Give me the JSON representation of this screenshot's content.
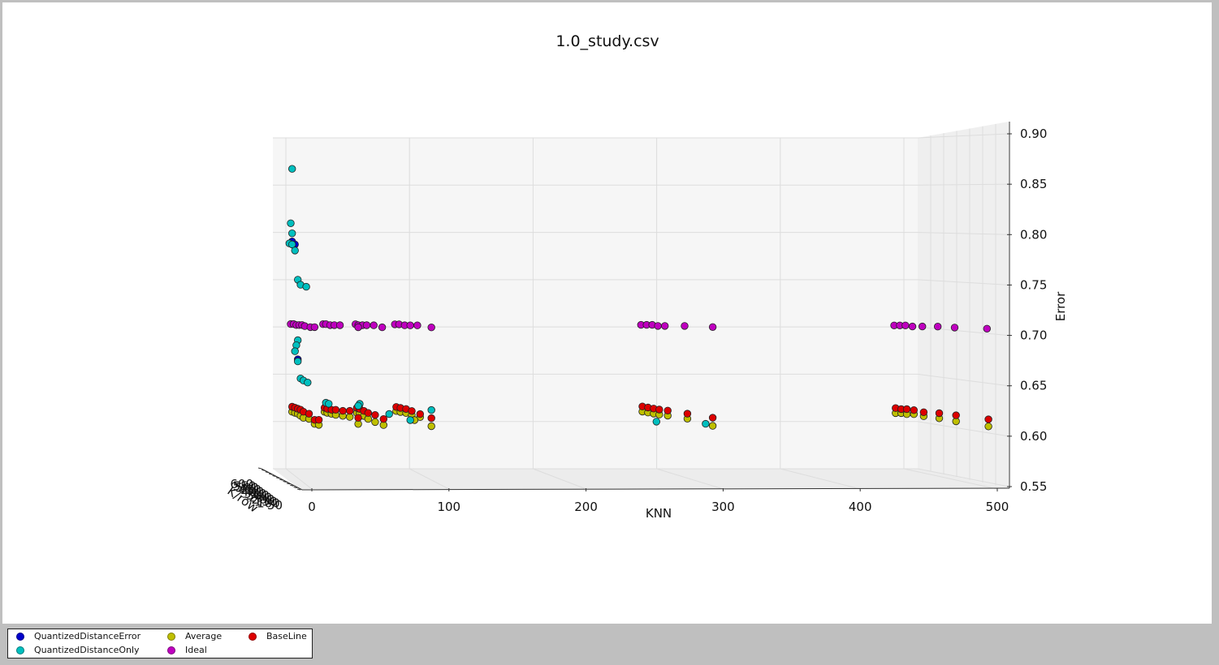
{
  "chart_data": {
    "type": "scatter",
    "title": "1.0_study.csv",
    "xlabel": "KNN",
    "ylabel": "K/row",
    "zlabel": "Error",
    "x_ticks": [
      "0",
      "100",
      "200",
      "300",
      "400",
      "500"
    ],
    "y_ticks": [
      "50",
      "100",
      "150",
      "200",
      "250",
      "300",
      "350",
      "400",
      "450",
      "500",
      "550",
      "600"
    ],
    "z_ticks": [
      "0.55",
      "0.60",
      "0.65",
      "0.70",
      "0.75",
      "0.80",
      "0.85",
      "0.90"
    ],
    "xlim": [
      0,
      500
    ],
    "zlim": [
      0.55,
      0.9
    ],
    "grid": true,
    "legend_position": "bottom-left, outside plot",
    "series": [
      {
        "name": "QuantizedDistanceError",
        "color": "#0000cc",
        "points": [
          {
            "x": 1,
            "z": 0.782
          },
          {
            "x": 3,
            "z": 0.779
          },
          {
            "x": 5,
            "z": 0.665
          }
        ]
      },
      {
        "name": "QuantizedDistanceOnly",
        "color": "#00bfbf",
        "points": [
          {
            "x": 1,
            "z": 0.854
          },
          {
            "x": 0,
            "z": 0.8
          },
          {
            "x": 1,
            "z": 0.79
          },
          {
            "x": -1,
            "z": 0.78
          },
          {
            "x": 1,
            "z": 0.779
          },
          {
            "x": 3,
            "z": 0.773
          },
          {
            "x": 5,
            "z": 0.744
          },
          {
            "x": 7,
            "z": 0.739
          },
          {
            "x": 11,
            "z": 0.737
          },
          {
            "x": 5,
            "z": 0.684
          },
          {
            "x": 4,
            "z": 0.679
          },
          {
            "x": 3,
            "z": 0.673
          },
          {
            "x": 5,
            "z": 0.663
          },
          {
            "x": 7,
            "z": 0.646
          },
          {
            "x": 9,
            "z": 0.644
          },
          {
            "x": 12,
            "z": 0.642
          },
          {
            "x": 25,
            "z": 0.622
          },
          {
            "x": 27,
            "z": 0.621
          },
          {
            "x": 49,
            "z": 0.621
          },
          {
            "x": 48,
            "z": 0.619
          },
          {
            "x": 70,
            "z": 0.611
          },
          {
            "x": 100,
            "z": 0.615
          },
          {
            "x": 85,
            "z": 0.605
          },
          {
            "x": 260,
            "z": 0.604
          },
          {
            "x": 295,
            "z": 0.602
          }
        ]
      },
      {
        "name": "Average",
        "color": "#bfbf00",
        "points": [
          {
            "x": 1,
            "z": 0.613
          },
          {
            "x": 3,
            "z": 0.612
          },
          {
            "x": 5,
            "z": 0.611
          },
          {
            "x": 7,
            "z": 0.609
          },
          {
            "x": 9,
            "z": 0.607
          },
          {
            "x": 13,
            "z": 0.606
          },
          {
            "x": 17,
            "z": 0.601
          },
          {
            "x": 20,
            "z": 0.6
          },
          {
            "x": 24,
            "z": 0.613
          },
          {
            "x": 26,
            "z": 0.612
          },
          {
            "x": 29,
            "z": 0.611
          },
          {
            "x": 32,
            "z": 0.61
          },
          {
            "x": 37,
            "z": 0.609
          },
          {
            "x": 42,
            "z": 0.608
          },
          {
            "x": 47,
            "z": 0.612
          },
          {
            "x": 49,
            "z": 0.611
          },
          {
            "x": 52,
            "z": 0.609
          },
          {
            "x": 55,
            "z": 0.606
          },
          {
            "x": 60,
            "z": 0.603
          },
          {
            "x": 48,
            "z": 0.601
          },
          {
            "x": 66,
            "z": 0.6
          },
          {
            "x": 75,
            "z": 0.614
          },
          {
            "x": 78,
            "z": 0.613
          },
          {
            "x": 82,
            "z": 0.612
          },
          {
            "x": 86,
            "z": 0.61
          },
          {
            "x": 92,
            "z": 0.608
          },
          {
            "x": 88,
            "z": 0.605
          },
          {
            "x": 100,
            "z": 0.599
          },
          {
            "x": 250,
            "z": 0.614
          },
          {
            "x": 254,
            "z": 0.613
          },
          {
            "x": 258,
            "z": 0.612
          },
          {
            "x": 262,
            "z": 0.611
          },
          {
            "x": 268,
            "z": 0.61
          },
          {
            "x": 282,
            "z": 0.607
          },
          {
            "x": 300,
            "z": 0.6
          },
          {
            "x": 430,
            "z": 0.613
          },
          {
            "x": 434,
            "z": 0.613
          },
          {
            "x": 438,
            "z": 0.612
          },
          {
            "x": 443,
            "z": 0.612
          },
          {
            "x": 450,
            "z": 0.61
          },
          {
            "x": 461,
            "z": 0.608
          },
          {
            "x": 473,
            "z": 0.605
          },
          {
            "x": 496,
            "z": 0.6
          }
        ]
      },
      {
        "name": "BaseLine",
        "color": "#dd0000",
        "points": [
          {
            "x": 1,
            "z": 0.618
          },
          {
            "x": 3,
            "z": 0.617
          },
          {
            "x": 5,
            "z": 0.616
          },
          {
            "x": 7,
            "z": 0.615
          },
          {
            "x": 9,
            "z": 0.613
          },
          {
            "x": 13,
            "z": 0.611
          },
          {
            "x": 17,
            "z": 0.605
          },
          {
            "x": 20,
            "z": 0.605
          },
          {
            "x": 24,
            "z": 0.617
          },
          {
            "x": 26,
            "z": 0.616
          },
          {
            "x": 29,
            "z": 0.615
          },
          {
            "x": 32,
            "z": 0.615
          },
          {
            "x": 37,
            "z": 0.614
          },
          {
            "x": 42,
            "z": 0.614
          },
          {
            "x": 47,
            "z": 0.617
          },
          {
            "x": 49,
            "z": 0.616
          },
          {
            "x": 52,
            "z": 0.614
          },
          {
            "x": 55,
            "z": 0.612
          },
          {
            "x": 60,
            "z": 0.61
          },
          {
            "x": 48,
            "z": 0.607
          },
          {
            "x": 66,
            "z": 0.606
          },
          {
            "x": 75,
            "z": 0.618
          },
          {
            "x": 78,
            "z": 0.617
          },
          {
            "x": 82,
            "z": 0.616
          },
          {
            "x": 86,
            "z": 0.614
          },
          {
            "x": 92,
            "z": 0.611
          },
          {
            "x": 100,
            "z": 0.607
          },
          {
            "x": 250,
            "z": 0.619
          },
          {
            "x": 254,
            "z": 0.618
          },
          {
            "x": 258,
            "z": 0.617
          },
          {
            "x": 262,
            "z": 0.616
          },
          {
            "x": 268,
            "z": 0.615
          },
          {
            "x": 282,
            "z": 0.612
          },
          {
            "x": 300,
            "z": 0.608
          },
          {
            "x": 430,
            "z": 0.618
          },
          {
            "x": 434,
            "z": 0.617
          },
          {
            "x": 438,
            "z": 0.617
          },
          {
            "x": 443,
            "z": 0.616
          },
          {
            "x": 450,
            "z": 0.614
          },
          {
            "x": 461,
            "z": 0.613
          },
          {
            "x": 473,
            "z": 0.611
          },
          {
            "x": 496,
            "z": 0.607
          }
        ]
      },
      {
        "name": "Ideal",
        "color": "#bf00bf",
        "points": [
          {
            "x": 0,
            "z": 0.7
          },
          {
            "x": 2,
            "z": 0.7
          },
          {
            "x": 4,
            "z": 0.699
          },
          {
            "x": 6,
            "z": 0.699
          },
          {
            "x": 8,
            "z": 0.699
          },
          {
            "x": 10,
            "z": 0.698
          },
          {
            "x": 14,
            "z": 0.697
          },
          {
            "x": 17,
            "z": 0.697
          },
          {
            "x": 23,
            "z": 0.7
          },
          {
            "x": 25,
            "z": 0.7
          },
          {
            "x": 28,
            "z": 0.699
          },
          {
            "x": 31,
            "z": 0.699
          },
          {
            "x": 35,
            "z": 0.699
          },
          {
            "x": 46,
            "z": 0.7
          },
          {
            "x": 48,
            "z": 0.699
          },
          {
            "x": 51,
            "z": 0.699
          },
          {
            "x": 54,
            "z": 0.699
          },
          {
            "x": 59,
            "z": 0.699
          },
          {
            "x": 48,
            "z": 0.697
          },
          {
            "x": 65,
            "z": 0.697
          },
          {
            "x": 74,
            "z": 0.7
          },
          {
            "x": 77,
            "z": 0.7
          },
          {
            "x": 81,
            "z": 0.699
          },
          {
            "x": 85,
            "z": 0.699
          },
          {
            "x": 90,
            "z": 0.699
          },
          {
            "x": 100,
            "z": 0.697
          },
          {
            "x": 249,
            "z": 0.7
          },
          {
            "x": 253,
            "z": 0.7
          },
          {
            "x": 257,
            "z": 0.7
          },
          {
            "x": 261,
            "z": 0.699
          },
          {
            "x": 266,
            "z": 0.699
          },
          {
            "x": 280,
            "z": 0.699
          },
          {
            "x": 300,
            "z": 0.698
          },
          {
            "x": 429,
            "z": 0.7
          },
          {
            "x": 433,
            "z": 0.7
          },
          {
            "x": 437,
            "z": 0.7
          },
          {
            "x": 442,
            "z": 0.699
          },
          {
            "x": 449,
            "z": 0.699
          },
          {
            "x": 460,
            "z": 0.699
          },
          {
            "x": 472,
            "z": 0.698
          },
          {
            "x": 495,
            "z": 0.697
          }
        ]
      }
    ]
  }
}
